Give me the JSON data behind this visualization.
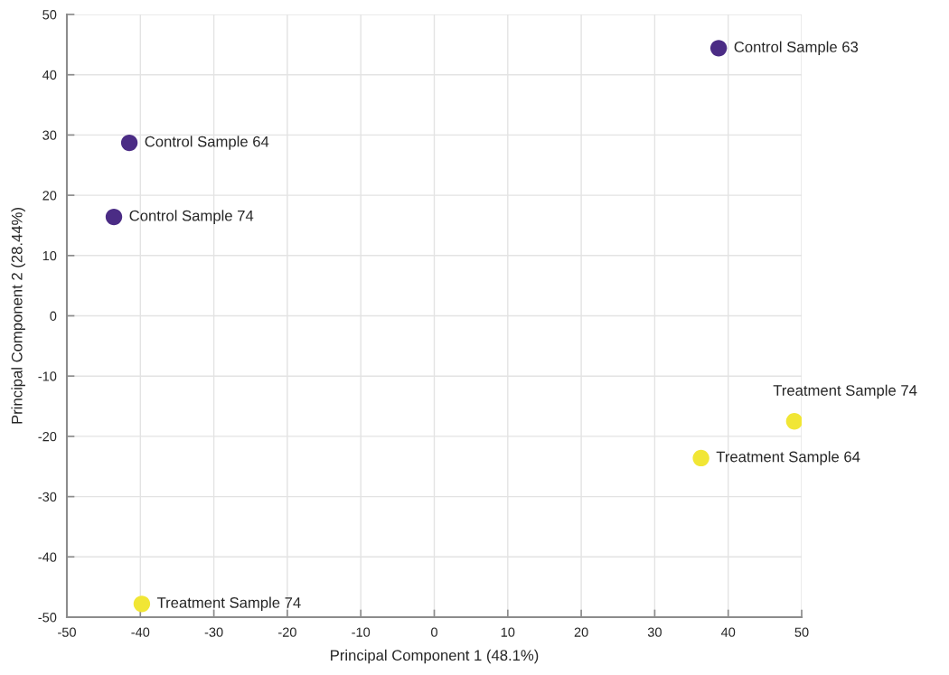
{
  "chart_data": {
    "type": "scatter",
    "xlabel": "Principal Component 1 (48.1%)",
    "ylabel": "Principal Component 2 (28.44%)",
    "xlim": [
      -50,
      50
    ],
    "ylim": [
      -50,
      50
    ],
    "xticks": [
      -50,
      -40,
      -30,
      -20,
      -10,
      0,
      10,
      20,
      30,
      40,
      50
    ],
    "yticks": [
      -50,
      -40,
      -30,
      -20,
      -10,
      0,
      10,
      20,
      30,
      40,
      50
    ],
    "grid": true,
    "marker": "circle",
    "series": [
      {
        "color": "#4b2c85",
        "x": [
          38.7,
          -41.5,
          -43.6
        ],
        "values": [
          44.4,
          28.7,
          16.4
        ]
      },
      {
        "color": "#f1e635",
        "x": [
          49.0,
          36.3,
          -39.8
        ],
        "values": [
          -17.5,
          -23.6,
          -47.8
        ]
      }
    ],
    "annotations": [
      {
        "text": "Control Sample 63",
        "x": 38.7,
        "y": 44.4
      },
      {
        "text": "Control Sample 64",
        "x": -41.5,
        "y": 28.7
      },
      {
        "text": "Control Sample 74",
        "x": -43.6,
        "y": 16.4
      },
      {
        "text": "Treatment Sample 74",
        "x": 49.0,
        "y": -17.5
      },
      {
        "text": "Treatment Sample 64",
        "x": 36.3,
        "y": -23.6
      },
      {
        "text": "Treatment Sample 74",
        "x": -39.8,
        "y": -47.8
      }
    ]
  }
}
